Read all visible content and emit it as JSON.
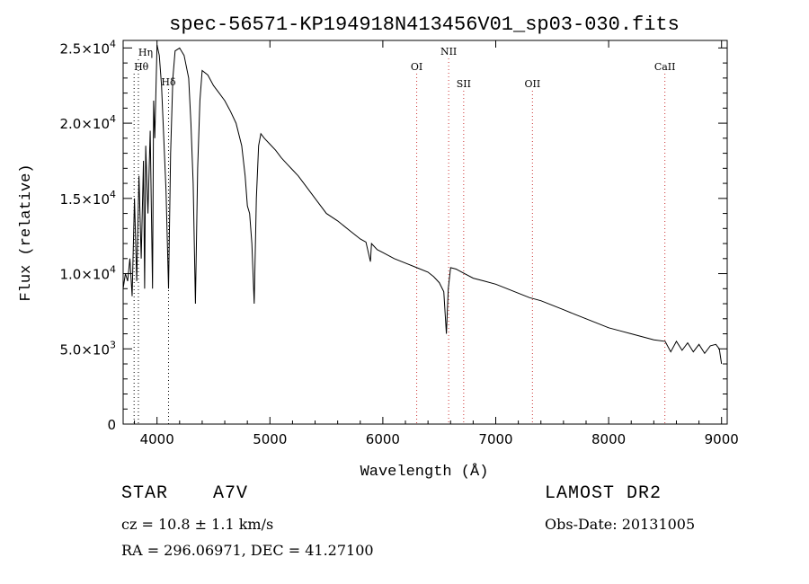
{
  "chart_data": {
    "type": "line",
    "title": "spec-56571-KP194918N413456V01_sp03-030.fits",
    "xlabel": "Wavelength (Å)",
    "ylabel": "Flux (relative)",
    "xlim": [
      3700,
      9050
    ],
    "ylim": [
      0,
      25500
    ],
    "x_ticks": [
      4000,
      5000,
      6000,
      7000,
      8000,
      9000
    ],
    "x_tick_labels": [
      "4000",
      "5000",
      "6000",
      "7000",
      "8000",
      "9000"
    ],
    "y_ticks": [
      0,
      5000,
      10000,
      15000,
      20000,
      25000
    ],
    "y_tick_labels": [
      {
        "mant": "0",
        "exp": ""
      },
      {
        "mant": "5.0×10",
        "exp": "3"
      },
      {
        "mant": "1.0×10",
        "exp": "4"
      },
      {
        "mant": "1.5×10",
        "exp": "4"
      },
      {
        "mant": "2.0×10",
        "exp": "4"
      },
      {
        "mant": "2.5×10",
        "exp": "4"
      }
    ],
    "lines": [
      {
        "label": "Hη",
        "wave": 3835,
        "color": "#000000"
      },
      {
        "label": "Hθ",
        "wave": 3797,
        "color": "#000000"
      },
      {
        "label": "Hδ",
        "wave": 4102,
        "color": "#000000"
      },
      {
        "label": "OI",
        "wave": 6300,
        "color": "#cc3333"
      },
      {
        "label": "NII",
        "wave": 6583,
        "color": "#cc3333"
      },
      {
        "label": "SII",
        "wave": 6716,
        "color": "#cc3333"
      },
      {
        "label": "OII",
        "wave": 7325,
        "color": "#cc3333"
      },
      {
        "label": "CaII",
        "wave": 8498,
        "color": "#cc3333"
      }
    ],
    "series": [
      {
        "x": [
          3700,
          3720,
          3740,
          3760,
          3780,
          3800,
          3820,
          3840,
          3860,
          3880,
          3890,
          3900,
          3920,
          3940,
          3960,
          3970,
          3980,
          4000,
          4020,
          4040,
          4060,
          4080,
          4102,
          4120,
          4140,
          4160,
          4200,
          4240,
          4280,
          4300,
          4320,
          4340,
          4360,
          4380,
          4400,
          4450,
          4500,
          4550,
          4600,
          4650,
          4700,
          4750,
          4780,
          4800,
          4820,
          4840,
          4861,
          4880,
          4900,
          4920,
          4950,
          5000,
          5050,
          5100,
          5150,
          5200,
          5250,
          5300,
          5400,
          5500,
          5600,
          5700,
          5800,
          5850,
          5890,
          5900,
          5950,
          6000,
          6100,
          6200,
          6300,
          6400,
          6450,
          6500,
          6540,
          6563,
          6580,
          6600,
          6650,
          6700,
          6800,
          6900,
          7000,
          7100,
          7200,
          7300,
          7400,
          7500,
          7600,
          7700,
          7800,
          7900,
          8000,
          8100,
          8200,
          8300,
          8400,
          8500,
          8550,
          8600,
          8650,
          8700,
          8750,
          8800,
          8850,
          8900,
          8950,
          8980,
          9000
        ],
        "y": [
          9000,
          10000,
          9500,
          11000,
          8500,
          15000,
          9500,
          16500,
          11000,
          17500,
          9000,
          18500,
          14000,
          19500,
          9000,
          21500,
          19000,
          25200,
          24500,
          22500,
          19000,
          15500,
          9000,
          18000,
          23000,
          24800,
          25000,
          24500,
          23000,
          20000,
          16000,
          8000,
          17000,
          21500,
          23500,
          23200,
          22500,
          22000,
          21500,
          20800,
          20000,
          18500,
          16500,
          14500,
          14000,
          12000,
          8000,
          15000,
          18500,
          19300,
          19000,
          18600,
          18200,
          17700,
          17300,
          16900,
          16500,
          16000,
          15000,
          14000,
          13500,
          12900,
          12300,
          12100,
          10800,
          12000,
          11600,
          11400,
          11000,
          10700,
          10400,
          10100,
          9800,
          9400,
          8800,
          6000,
          9000,
          10400,
          10300,
          10100,
          9700,
          9500,
          9300,
          9000,
          8700,
          8400,
          8200,
          7900,
          7600,
          7300,
          7000,
          6700,
          6400,
          6200,
          6000,
          5800,
          5600,
          5500,
          4800,
          5500,
          4900,
          5400,
          4800,
          5300,
          4700,
          5200,
          5300,
          5000,
          4000
        ]
      }
    ],
    "grid": false
  },
  "info": {
    "class_label": "STAR",
    "class_value": "A7V",
    "cz": "cz = 10.8 ± 1.1 km/s",
    "radec": "RA = 296.06971, DEC =  41.27100",
    "survey": "LAMOST DR2",
    "obs_date": "Obs-Date: 20131005"
  }
}
